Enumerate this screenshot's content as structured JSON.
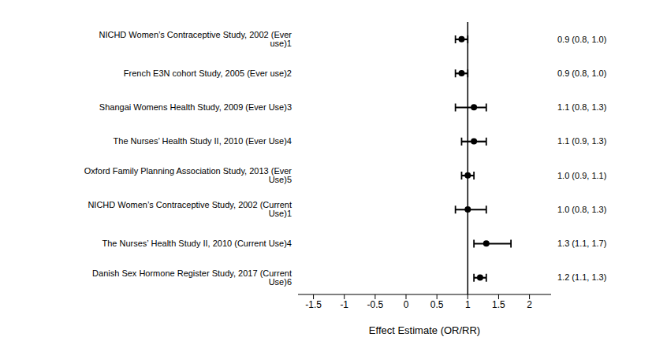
{
  "chart_data": {
    "type": "forest",
    "xlabel": "Effect Estimate (OR/RR)",
    "categories": [
      "NICHD Women’s Contraceptive Study, 2002 (Ever use)1",
      "French E3N cohort Study, 2005 (Ever use)2",
      "Shangai Womens Health Study, 2009 (Ever Use)3",
      "The Nurses’ Health Study II, 2010 (Ever Use)4",
      "Oxford Family Planning Association Study, 2013 (Ever Use)5",
      "NICHD Women’s Contraceptive Study, 2002 (Current Use)1",
      "The Nurses’ Health Study II, 2010 (Current Use)4",
      "Danish Sex Hormone Register Study, 2017 (Current Use)6"
    ],
    "values": [
      0.9,
      0.9,
      1.1,
      1.1,
      1.0,
      1.0,
      1.3,
      1.2
    ],
    "value_labels": [
      "0.9 (0.8, 1.0)",
      "0.9 (0.8, 1.0)",
      "1.1 (0.8, 1.3)",
      "1.1 (0.9, 1.3)",
      "1.0 (0.9, 1.1)",
      "1.0 (0.8, 1.3)",
      "1.3 (1.1, 1.7)",
      "1.2 (1.1, 1.3)"
    ],
    "ci_lower": [
      0.8,
      0.8,
      0.8,
      0.9,
      0.9,
      0.8,
      1.1,
      1.1
    ],
    "ci_upper": [
      1.0,
      1.0,
      1.3,
      1.3,
      1.1,
      1.3,
      1.7,
      1.3
    ],
    "ref_line": 1.0,
    "xlim": [
      -1.75,
      2.35
    ],
    "xticks": [
      -1.5,
      -1,
      -0.5,
      0,
      0.5,
      1,
      1.5,
      2
    ],
    "color": "#000000"
  }
}
